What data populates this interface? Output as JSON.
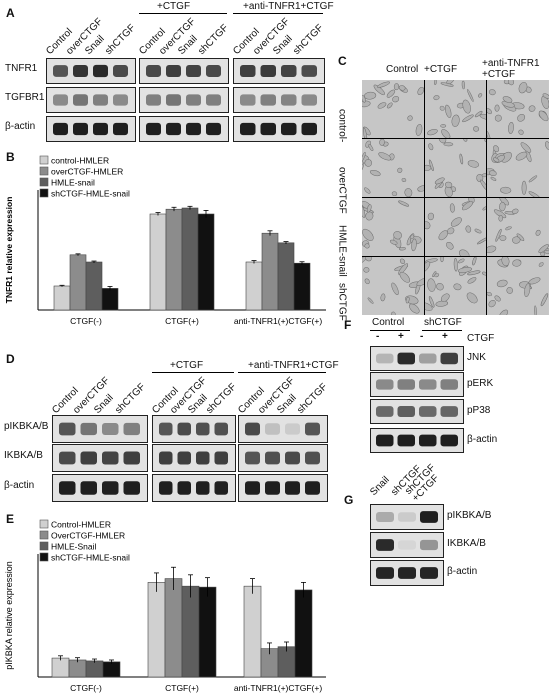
{
  "panels": {
    "A": {
      "label": "A",
      "lanes": [
        "Control",
        "overCTGF",
        "Snail",
        "shCTGF"
      ],
      "groups": [
        "+CTGF",
        "+anti-TNFR1+CTGF"
      ],
      "rows": [
        "TNFR1",
        "TGFBR1",
        "β-actin"
      ]
    },
    "B": {
      "label": "B",
      "ylabel": "TNFR1 relative expression",
      "legend": [
        "control-HMLER",
        "overCTGF-HMLER",
        "HMLE-snail",
        "shCTGF-HMLE-snail"
      ]
    },
    "C": {
      "label": "C",
      "columns": [
        "Control",
        "+CTGF",
        "+anti-TNFR1\n+CTGF"
      ],
      "rows": [
        "control-",
        "overCTGF",
        "HMLE-snail",
        "shCTGF"
      ]
    },
    "D": {
      "label": "D",
      "lanes": [
        "Control",
        "overCTGF",
        "Snail",
        "shCTGF"
      ],
      "groups": [
        "+CTGF",
        "+anti-TNFR1+CTGF"
      ],
      "rows": [
        "pIKBKA/B",
        "IKBKA/B",
        "β-actin"
      ]
    },
    "E": {
      "label": "E",
      "ylabel": "pIKBKA relative expression",
      "legend": [
        "Control-HMLER",
        "OverCTGF-HMLER",
        "HMLE-Snail",
        "shCTGF-HMLE-snail"
      ]
    },
    "F": {
      "label": "F",
      "groups": [
        "Control",
        "shCTGF"
      ],
      "ctgf_label": "CTGF",
      "signs": [
        "-",
        "+",
        "-",
        "+"
      ],
      "rows": [
        "JNK",
        "pERK",
        "pP38",
        "β-actin"
      ]
    },
    "G": {
      "label": "G",
      "lanes": [
        "Snail",
        "shCTGF",
        "shCTGF\n+CTGF"
      ],
      "rows": [
        "pIKBKA/B",
        "IKBKA/B",
        "β-actin"
      ]
    }
  },
  "colors": {
    "series": [
      "#d0d0d0",
      "#8c8c8c",
      "#5e5e5e",
      "#111111"
    ]
  },
  "chart_data": [
    {
      "type": "bar",
      "panel": "B",
      "categories": [
        "CTGF(-)",
        "CTGF(+)",
        "anti-TNFR1(+)CTGF(+)"
      ],
      "series": [
        {
          "name": "control-HMLER",
          "values": [
            1.0,
            4.0,
            2.0
          ],
          "errors": [
            0.03,
            0.06,
            0.06
          ]
        },
        {
          "name": "overCTGF-HMLER",
          "values": [
            2.3,
            4.2,
            3.2
          ],
          "errors": [
            0.04,
            0.08,
            0.1
          ]
        },
        {
          "name": "HMLE-snail",
          "values": [
            2.0,
            4.25,
            2.8
          ],
          "errors": [
            0.04,
            0.07,
            0.05
          ]
        },
        {
          "name": "shCTGF-HMLE-snail",
          "values": [
            0.9,
            4.0,
            1.95
          ],
          "errors": [
            0.08,
            0.15,
            0.06
          ]
        }
      ],
      "ylabel": "TNFR1 relative expression",
      "ylim": [
        0,
        5
      ],
      "yticks": [],
      "grid": false,
      "legend": "top-left"
    },
    {
      "type": "bar",
      "panel": "E",
      "categories": [
        "CTGF(-)",
        "CTGF(+)",
        "anti-TNFR1(+)CTGF(+)"
      ],
      "series": [
        {
          "name": "Control-HMLER",
          "values": [
            1.0,
            5.0,
            4.8
          ],
          "errors": [
            0.12,
            0.5,
            0.4
          ]
        },
        {
          "name": "OverCTGF-HMLER",
          "values": [
            0.9,
            5.2,
            1.5
          ],
          "errors": [
            0.12,
            0.6,
            0.3
          ]
        },
        {
          "name": "HMLE-Snail",
          "values": [
            0.85,
            4.8,
            1.6
          ],
          "errors": [
            0.1,
            0.6,
            0.25
          ]
        },
        {
          "name": "shCTGF-HMLE-snail",
          "values": [
            0.8,
            4.75,
            4.6
          ],
          "errors": [
            0.1,
            0.5,
            0.4
          ]
        }
      ],
      "ylabel": "pIKBKA relative expression",
      "ylim": [
        0,
        6.5
      ],
      "yticks": [],
      "grid": false,
      "legend": "top-left"
    }
  ]
}
